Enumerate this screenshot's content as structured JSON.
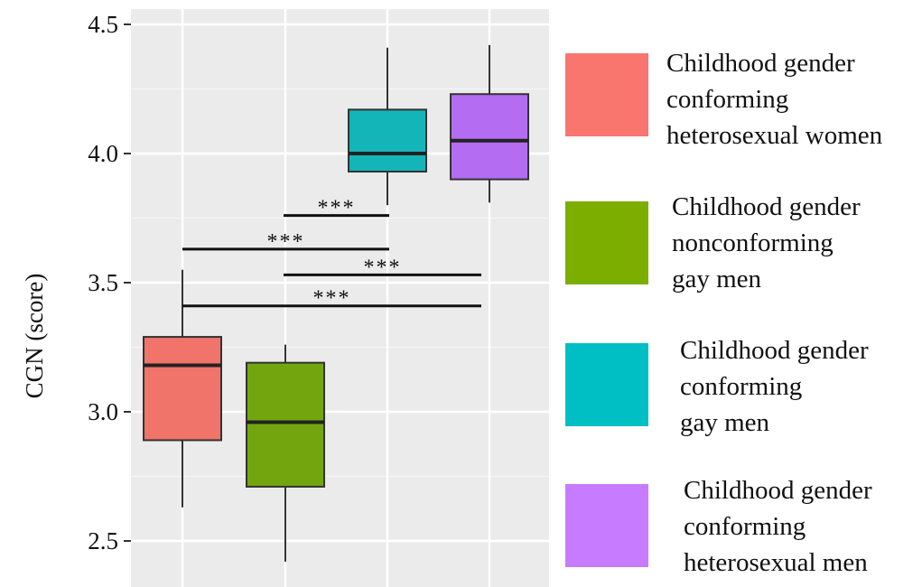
{
  "chart_data": {
    "type": "box",
    "title": "",
    "xlabel": "",
    "ylabel": "CGN (score)",
    "ylim": [
      2.42,
      4.5
    ],
    "yticks": [
      2.5,
      3.0,
      3.5,
      4.0,
      4.5
    ],
    "ytick_labels": [
      "2.5",
      "3.0",
      "3.5",
      "4.0",
      "4.5"
    ],
    "grid": true,
    "legend_position": "right",
    "series": [
      {
        "name": "Childhood gender conforming heterosexual women",
        "color": "#F07469",
        "min": 2.63,
        "q1": 2.89,
        "median": 3.18,
        "q3": 3.29,
        "max": 3.55
      },
      {
        "name": "Childhood gender nonconforming gay men",
        "color": "#73A60E",
        "min": 2.42,
        "q1": 2.71,
        "median": 2.96,
        "q3": 3.19,
        "max": 3.26
      },
      {
        "name": "Childhood gender conforming gay men",
        "color": "#14B5B8",
        "min": 3.8,
        "q1": 3.93,
        "median": 4.0,
        "q3": 4.17,
        "max": 4.41
      },
      {
        "name": "Childhood gender conforming heterosexual men",
        "color": "#B46CF2",
        "min": 3.81,
        "q1": 3.9,
        "median": 4.05,
        "q3": 4.23,
        "max": 4.42
      }
    ],
    "significance": [
      {
        "from": 2,
        "to": 3,
        "y": 3.76,
        "label": "***"
      },
      {
        "from": 1,
        "to": 3,
        "y": 3.63,
        "label": "***"
      },
      {
        "from": 2,
        "to": 4,
        "y": 3.53,
        "label": "***"
      },
      {
        "from": 1,
        "to": 4,
        "y": 3.41,
        "label": "***"
      }
    ]
  },
  "legend": [
    {
      "lines": [
        "Childhood gender",
        "conforming",
        "heterosexual women"
      ],
      "color": "#F8766D"
    },
    {
      "lines": [
        "Childhood gender",
        "nonconforming",
        "gay men"
      ],
      "color": "#7CAE00"
    },
    {
      "lines": [
        "Childhood gender",
        "conforming",
        "gay men"
      ],
      "color": "#00BFC4"
    },
    {
      "lines": [
        "Childhood gender",
        "conforming",
        "heterosexual men"
      ],
      "color": "#C77CFF"
    }
  ]
}
